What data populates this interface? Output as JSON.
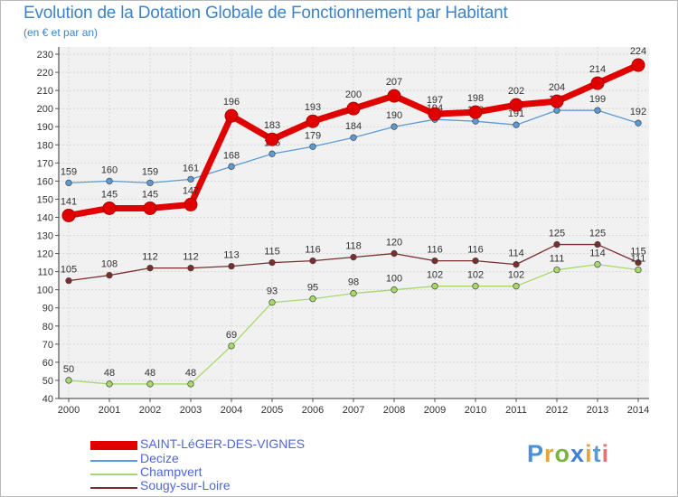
{
  "title": "Evolution de la Dotation Globale de Fonctionnement par Habitant",
  "subtitle": "(en € et par an)",
  "brand": {
    "text": "Proxiti",
    "letters": [
      "P",
      "r",
      "o",
      "x",
      "i",
      "t",
      "i"
    ],
    "colors": [
      "#4a90d9",
      "#e8a33d",
      "#7cb342",
      "#3f7fd6",
      "#e8a33d",
      "#5b9bd5",
      "#e57373"
    ]
  },
  "chart_data": {
    "type": "line",
    "title": "Evolution de la Dotation Globale de Fonctionnement par Habitant",
    "subtitle": "(en € et par an)",
    "xlabel": "",
    "ylabel": "",
    "categories": [
      "2000",
      "2001",
      "2002",
      "2003",
      "2004",
      "2005",
      "2006",
      "2007",
      "2008",
      "2009",
      "2010",
      "2011",
      "2012",
      "2013",
      "2014"
    ],
    "ylim": [
      40,
      230
    ],
    "yticks": [
      40,
      50,
      60,
      70,
      80,
      90,
      100,
      110,
      120,
      130,
      140,
      150,
      160,
      170,
      180,
      190,
      200,
      210,
      220,
      230
    ],
    "grid": true,
    "legend": "bottom-left",
    "series": [
      {
        "name": "SAINT-LéGER-DES-VIGNES",
        "color": "#e00000",
        "values": [
          141,
          145,
          145,
          147,
          196,
          183,
          193,
          200,
          207,
          197,
          198,
          202,
          204,
          214,
          224
        ]
      },
      {
        "name": "Decize",
        "color": "#5b9bd5",
        "values": [
          159,
          160,
          159,
          161,
          168,
          175,
          179,
          184,
          190,
          194,
          193,
          191,
          199,
          199,
          192
        ]
      },
      {
        "name": "Champvert",
        "color": "#a6d96a",
        "values": [
          50,
          48,
          48,
          48,
          69,
          93,
          95,
          98,
          100,
          102,
          102,
          102,
          111,
          114,
          111
        ]
      },
      {
        "name": "Sougy-sur-Loire",
        "color": "#7b2c2c",
        "values": [
          105,
          108,
          112,
          112,
          113,
          115,
          116,
          118,
          120,
          116,
          116,
          114,
          125,
          125,
          115
        ]
      }
    ]
  }
}
